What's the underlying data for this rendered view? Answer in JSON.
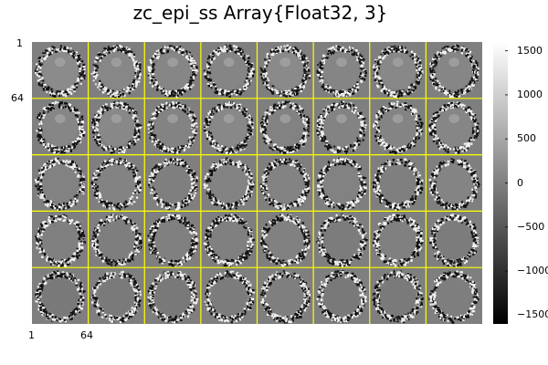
{
  "title": "zc_epi_ss Array{Float32, 3}",
  "chart_data": {
    "type": "heatmap",
    "layout": "mosaic",
    "title": "zc_epi_ss Array{Float32, 3}",
    "tile_rows": 5,
    "tile_cols": 8,
    "tile_size": 64,
    "grid_color": "#ffff00",
    "colormap": "grays",
    "x_ticks": [
      "1",
      "64"
    ],
    "y_ticks": [
      "1",
      "64"
    ],
    "colorbar": {
      "range": [
        -1600,
        1600
      ],
      "ticks": [
        {
          "value": 1500,
          "label": "1500"
        },
        {
          "value": 1000,
          "label": "1000"
        },
        {
          "value": 500,
          "label": "500"
        },
        {
          "value": 0,
          "label": "0"
        },
        {
          "value": -500,
          "label": "−500"
        },
        {
          "value": -1000,
          "label": "−1000"
        },
        {
          "value": -1500,
          "label": "−1500"
        }
      ]
    }
  }
}
